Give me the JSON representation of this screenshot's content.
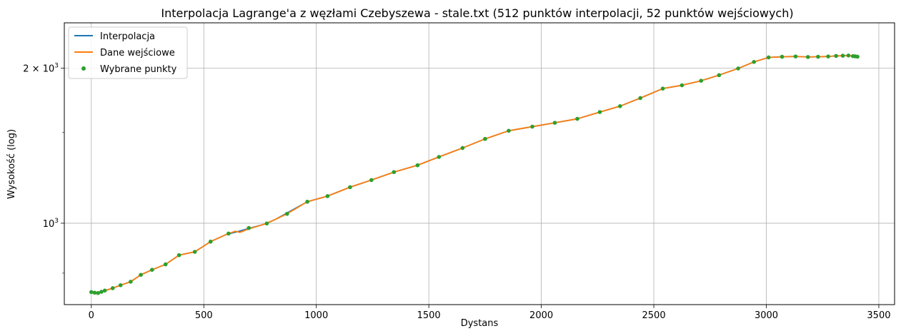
{
  "chart_data": {
    "type": "line",
    "title": "Interpolacja Lagrange'a z węzłami Czebyszewa - stale.txt (512 punktów interpolacji, 52 punktów wejściowych)",
    "xlabel": "Dystans",
    "ylabel": "Wysokość (log)",
    "xlim": [
      -120,
      3570
    ],
    "ylim": [
      695,
      2450
    ],
    "yscale": "log",
    "grid": true,
    "legend_position": "top-left",
    "x_ticks": [
      {
        "value": 0,
        "label": "0"
      },
      {
        "value": 500,
        "label": "500"
      },
      {
        "value": 1000,
        "label": "1000"
      },
      {
        "value": 1500,
        "label": "1500"
      },
      {
        "value": 2000,
        "label": "2000"
      },
      {
        "value": 2500,
        "label": "2500"
      },
      {
        "value": 3000,
        "label": "3000"
      },
      {
        "value": 3500,
        "label": "3500"
      }
    ],
    "y_major_ticks": [
      {
        "value": 1000,
        "base": "10",
        "exp": "3",
        "coef": ""
      },
      {
        "value": 2000,
        "base": "10",
        "exp": "3",
        "coef": "2 × "
      }
    ],
    "y_minor_ticks": [
      800,
      1500,
      3000
    ],
    "series": [
      {
        "name": "Interpolacja",
        "color": "#1f77b4",
        "x": [
          0,
          30,
          60,
          95,
          130,
          175,
          220,
          270,
          330,
          390,
          460,
          530,
          600,
          650,
          700,
          770,
          820,
          870,
          960,
          1050,
          1150,
          1245,
          1345,
          1450,
          1545,
          1650,
          1750,
          1855,
          1960,
          2060,
          2160,
          2260,
          2350,
          2440,
          2540,
          2625,
          2710,
          2790,
          2875,
          2945,
          3010,
          3070,
          3130,
          3185,
          3230,
          3275,
          3310,
          3340,
          3365,
          3385,
          3400
        ],
        "y": [
          735,
          733,
          740,
          748,
          758,
          770,
          794,
          812,
          832,
          867,
          880,
          921,
          951,
          963,
          977,
          996,
          1018,
          1047,
          1101,
          1129,
          1175,
          1213,
          1257,
          1296,
          1345,
          1400,
          1458,
          1512,
          1540,
          1567,
          1595,
          1644,
          1688,
          1750,
          1826,
          1853,
          1891,
          1939,
          1998,
          2057,
          2099,
          2105,
          2108,
          2103,
          2105,
          2108,
          2113,
          2115,
          2117,
          2111,
          2106
        ]
      },
      {
        "name": "Dane wejściowe",
        "color": "#ff7f0e",
        "x": [
          0,
          30,
          60,
          95,
          130,
          175,
          220,
          270,
          330,
          390,
          460,
          530,
          600,
          640,
          660,
          700,
          770,
          820,
          870,
          960,
          1050,
          1150,
          1245,
          1345,
          1450,
          1545,
          1650,
          1750,
          1855,
          1960,
          2060,
          2160,
          2260,
          2350,
          2440,
          2540,
          2625,
          2710,
          2790,
          2875,
          2945,
          3010,
          3070,
          3130,
          3185,
          3230,
          3275,
          3310,
          3340,
          3365,
          3385,
          3400
        ],
        "y": [
          735,
          733,
          740,
          748,
          758,
          770,
          794,
          812,
          832,
          867,
          880,
          921,
          951,
          965,
          960,
          975,
          996,
          1018,
          1043,
          1101,
          1129,
          1175,
          1213,
          1257,
          1296,
          1345,
          1400,
          1458,
          1512,
          1540,
          1567,
          1595,
          1644,
          1688,
          1750,
          1826,
          1853,
          1891,
          1939,
          1998,
          2057,
          2099,
          2105,
          2108,
          2103,
          2105,
          2108,
          2113,
          2115,
          2117,
          2111,
          2106
        ]
      },
      {
        "name": "Wybrane punkty",
        "color": "#2ca02c",
        "style": "markers",
        "x": [
          0,
          15,
          30,
          45,
          60,
          95,
          130,
          175,
          220,
          270,
          330,
          390,
          460,
          530,
          610,
          700,
          780,
          870,
          960,
          1050,
          1150,
          1245,
          1345,
          1450,
          1545,
          1650,
          1750,
          1855,
          1960,
          2060,
          2160,
          2260,
          2350,
          2440,
          2540,
          2625,
          2710,
          2790,
          2875,
          2945,
          3010,
          3070,
          3130,
          3185,
          3230,
          3275,
          3310,
          3340,
          3365,
          3385,
          3395,
          3405
        ],
        "y": [
          735,
          733,
          732,
          736,
          740,
          748,
          758,
          770,
          794,
          812,
          832,
          867,
          880,
          921,
          955,
          979,
          999,
          1043,
          1101,
          1129,
          1175,
          1213,
          1257,
          1296,
          1345,
          1400,
          1458,
          1512,
          1540,
          1567,
          1595,
          1644,
          1688,
          1750,
          1826,
          1853,
          1891,
          1939,
          1998,
          2057,
          2099,
          2105,
          2108,
          2103,
          2105,
          2108,
          2113,
          2115,
          2117,
          2111,
          2109,
          2106
        ]
      }
    ]
  }
}
